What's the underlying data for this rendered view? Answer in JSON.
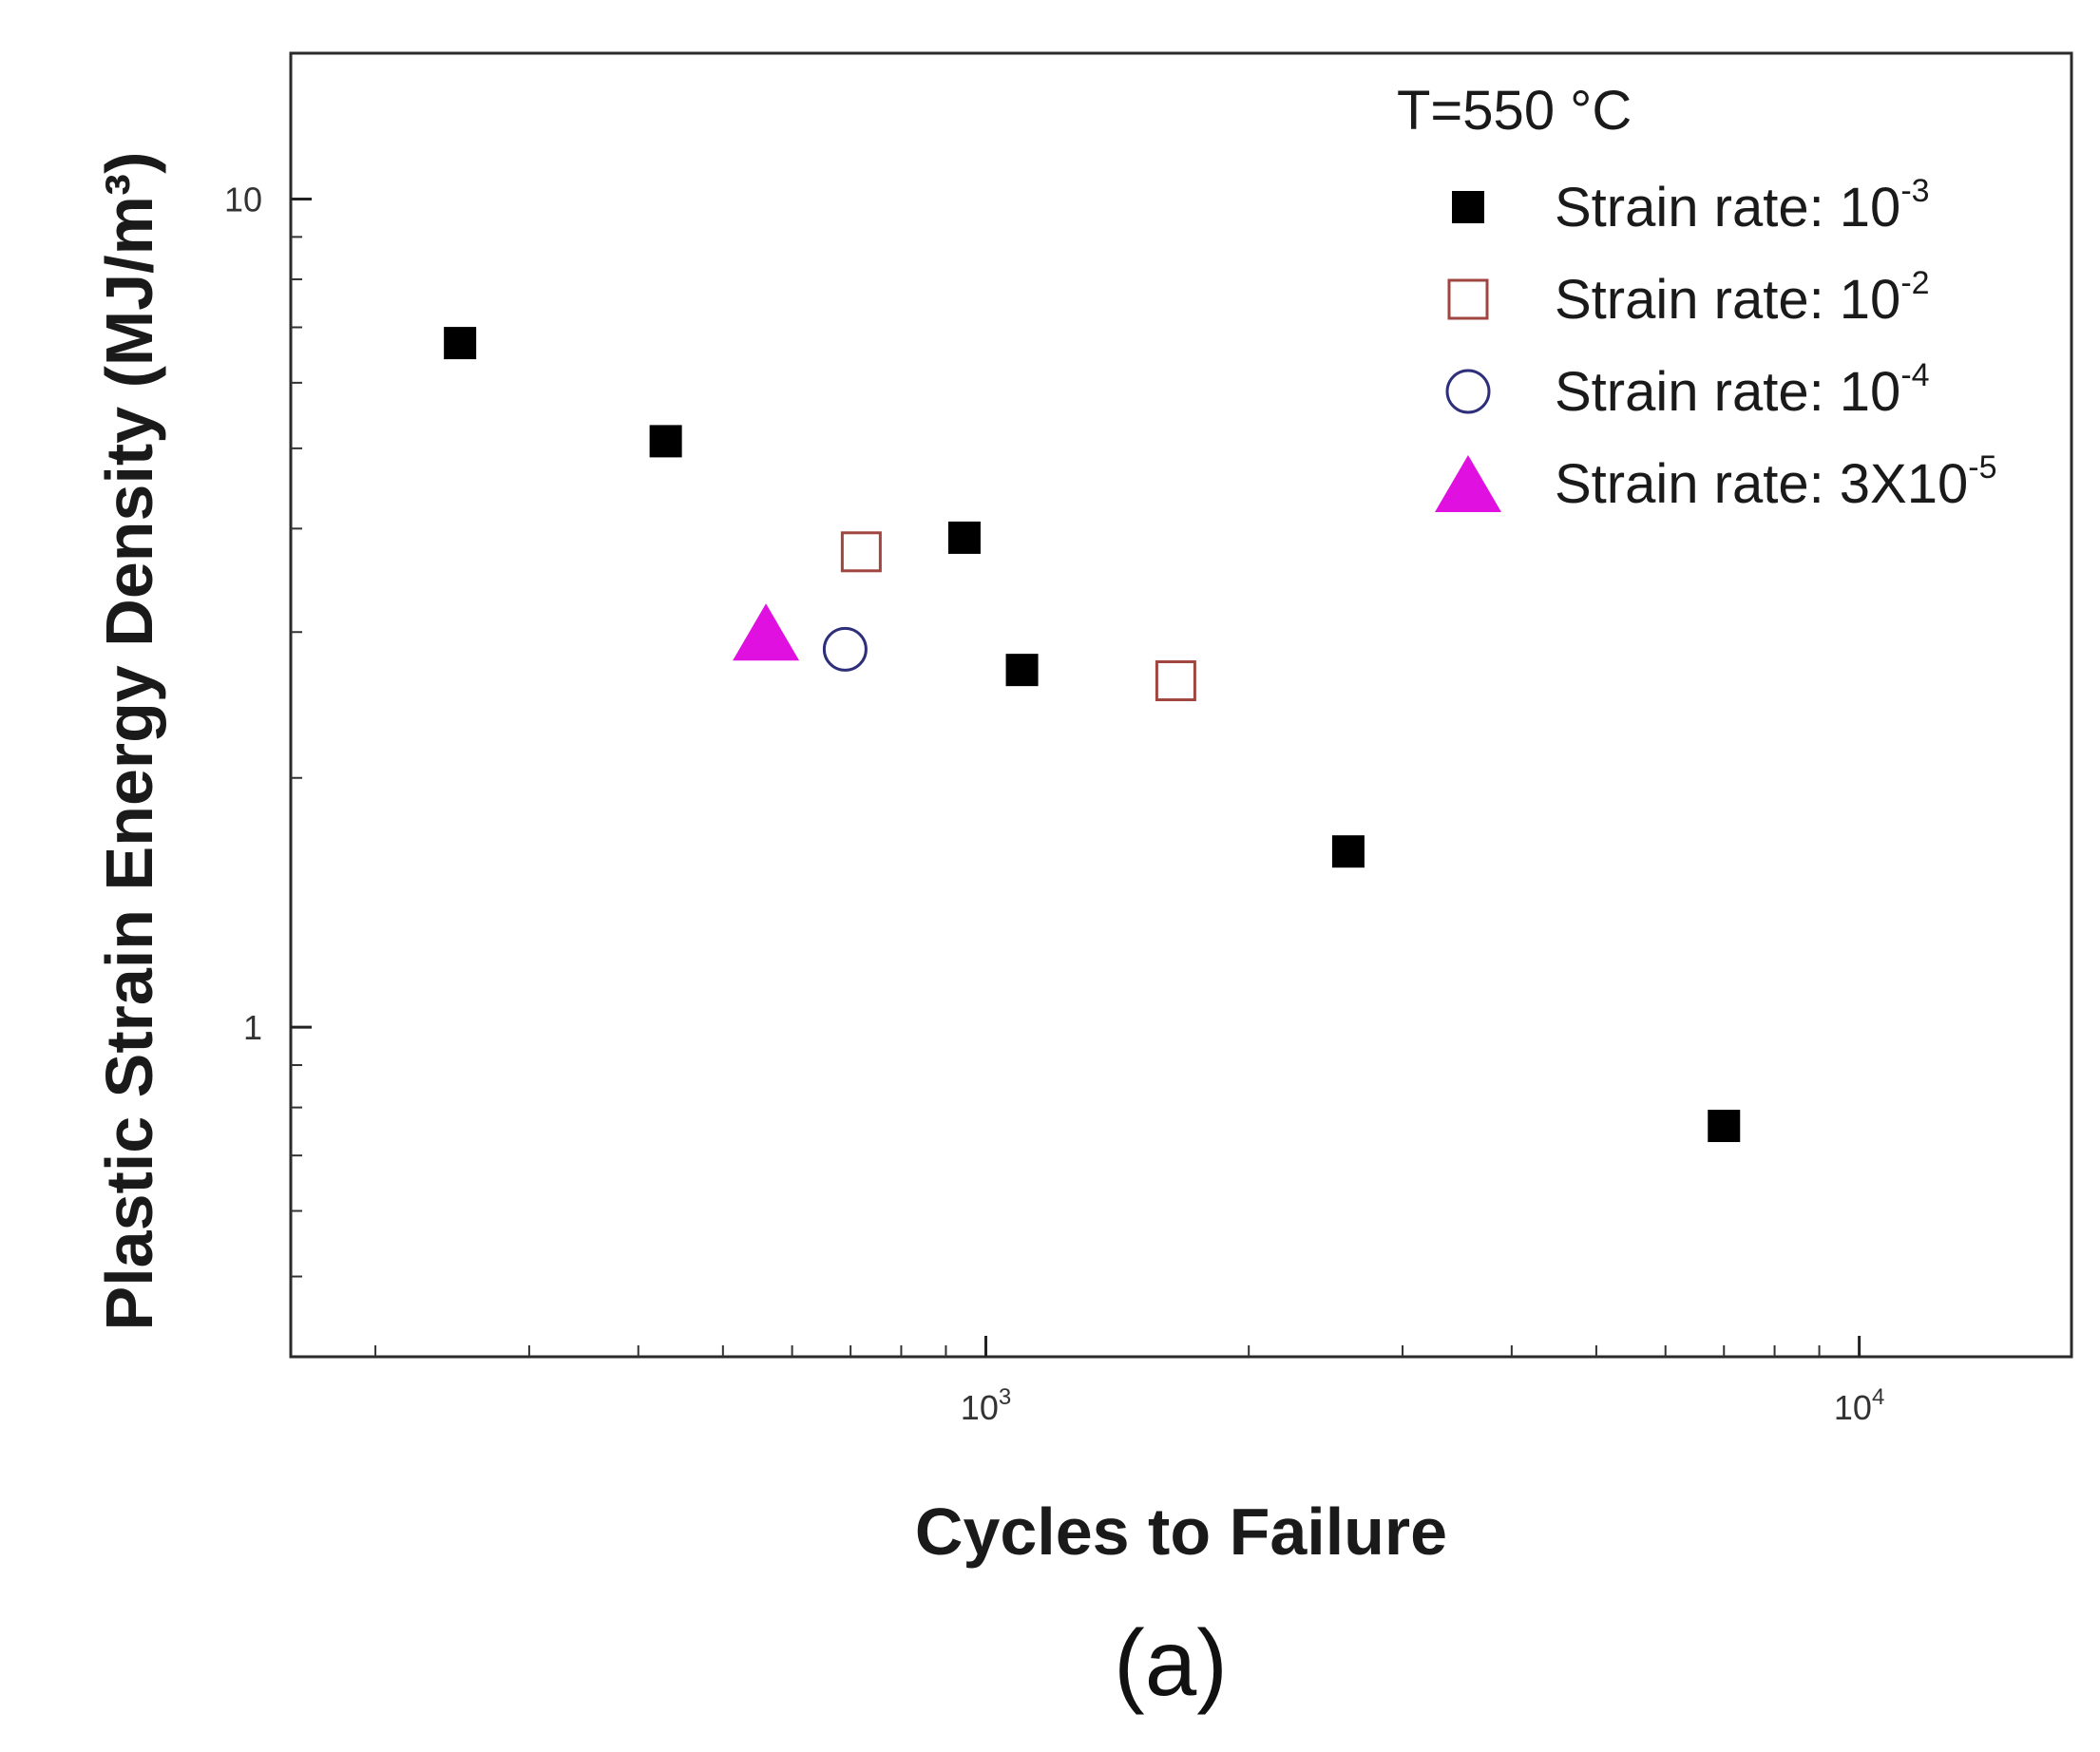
{
  "chart_data": {
    "type": "scatter",
    "title": "",
    "xlabel": "Cycles to Failure",
    "ylabel": "Plastic Strain Energy Density (MJ/m³)",
    "x_scale": "log",
    "y_scale": "log",
    "xlim": [
      160,
      17500
    ],
    "ylim": [
      0.4,
      15
    ],
    "x_ticks": [
      {
        "value": 1000,
        "base": "10",
        "exp": "3"
      },
      {
        "value": 10000,
        "base": "10",
        "exp": "4"
      }
    ],
    "y_ticks": [
      {
        "value": 1,
        "label": "1"
      },
      {
        "value": 10,
        "label": "10"
      }
    ],
    "annotation": {
      "text": "T=550 °C"
    },
    "legend_position": "top-right",
    "grid": false,
    "series": [
      {
        "name": "Strain rate: 10⁻³",
        "label_base": "Strain rate: 10",
        "label_exp": "-3",
        "marker": "filled-square",
        "color": "#000000",
        "points": [
          {
            "x": 250,
            "y": 6.7
          },
          {
            "x": 430,
            "y": 5.1
          },
          {
            "x": 945,
            "y": 3.9
          },
          {
            "x": 1100,
            "y": 2.7
          },
          {
            "x": 2600,
            "y": 1.63
          },
          {
            "x": 7000,
            "y": 0.76
          }
        ]
      },
      {
        "name": "Strain rate: 10⁻²",
        "label_base": "Strain rate: 10",
        "label_exp": "-2",
        "marker": "open-square",
        "color": "#a0453f",
        "points": [
          {
            "x": 720,
            "y": 3.75
          },
          {
            "x": 1650,
            "y": 2.62
          }
        ]
      },
      {
        "name": "Strain rate: 10⁻⁴",
        "label_base": "Strain rate: 10",
        "label_exp": "-4",
        "marker": "open-circle",
        "color": "#2e2f7a",
        "points": [
          {
            "x": 690,
            "y": 2.86
          }
        ]
      },
      {
        "name": "Strain rate: 3X10⁻⁵",
        "label_base": "Strain rate: 3X10",
        "label_exp": "-5",
        "marker": "filled-triangle",
        "color": "#e010e0",
        "points": [
          {
            "x": 560,
            "y": 3.0
          }
        ]
      }
    ]
  },
  "caption": "(a)"
}
